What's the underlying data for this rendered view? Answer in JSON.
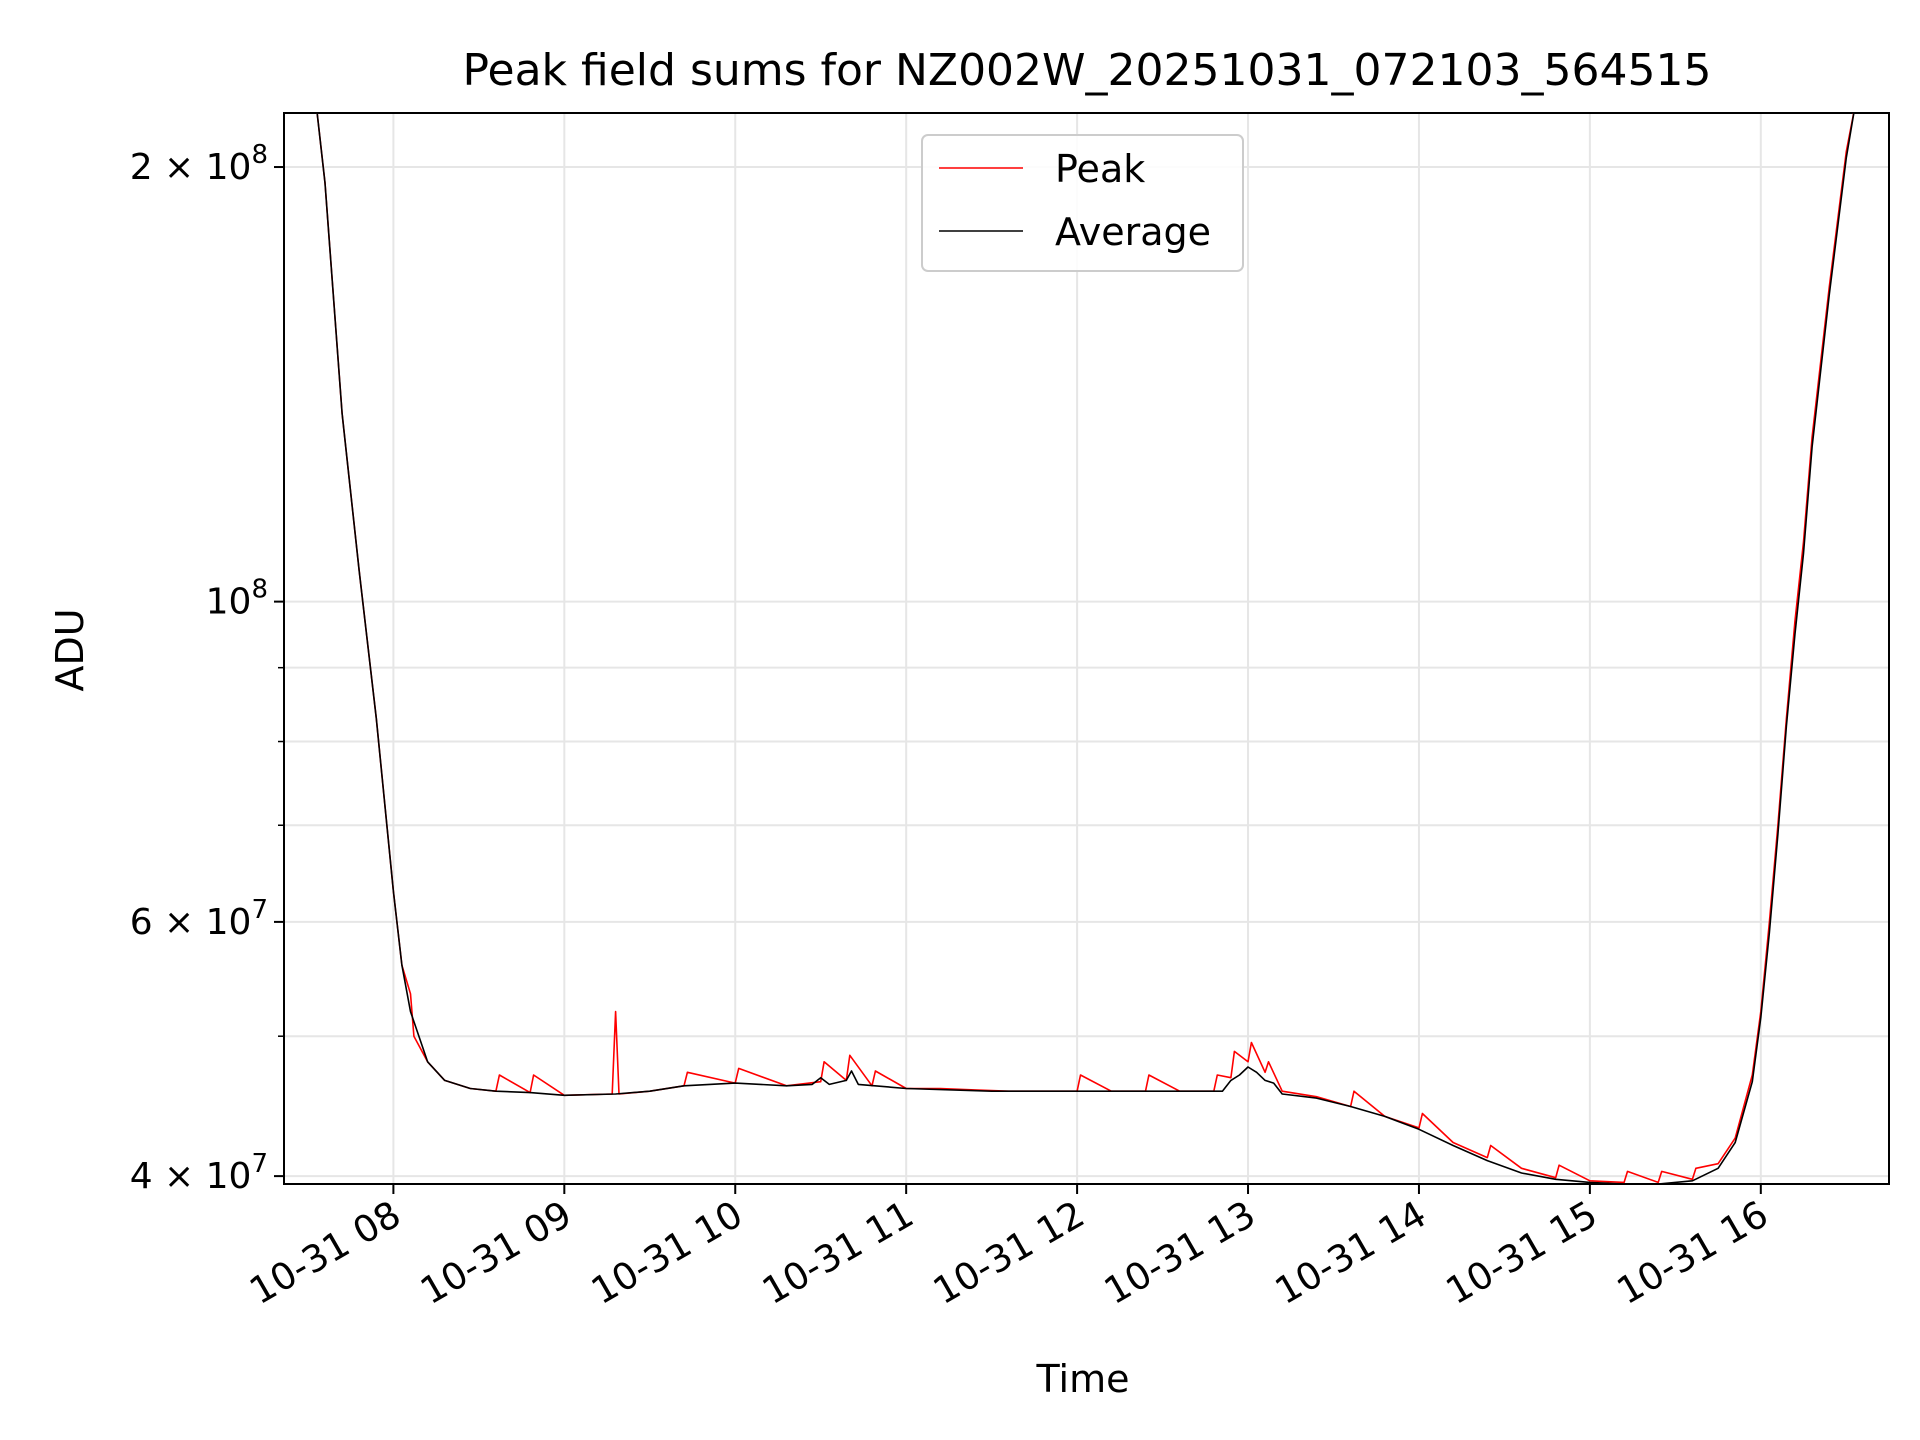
{
  "chart_data": {
    "type": "line",
    "title": "Peak field sums for NZ002W_20251031_072103_564515",
    "xlabel": "Time",
    "ylabel": "ADU",
    "yscale": "log",
    "grid": true,
    "legend_position": "top-center",
    "xlim_hours": [
      7.36,
      16.75
    ],
    "ylim": [
      39500000,
      218000000
    ],
    "x_ticks": [
      {
        "hour": 8,
        "label": "10-31 08"
      },
      {
        "hour": 9,
        "label": "10-31 09"
      },
      {
        "hour": 10,
        "label": "10-31 10"
      },
      {
        "hour": 11,
        "label": "10-31 11"
      },
      {
        "hour": 12,
        "label": "10-31 12"
      },
      {
        "hour": 13,
        "label": "10-31 13"
      },
      {
        "hour": 14,
        "label": "10-31 14"
      },
      {
        "hour": 15,
        "label": "10-31 15"
      },
      {
        "hour": 16,
        "label": "10-31 16"
      }
    ],
    "y_major_ticks": [
      {
        "value": 40000000,
        "mantissa": "4",
        "exp": "7"
      },
      {
        "value": 60000000,
        "mantissa": "6",
        "exp": "7"
      },
      {
        "value": 100000000,
        "mantissa": "",
        "exp": "8"
      },
      {
        "value": 200000000,
        "mantissa": "2",
        "exp": "8"
      }
    ],
    "y_minor_ticks": [
      50000000,
      70000000,
      80000000,
      90000000
    ],
    "series": [
      {
        "name": "Peak",
        "color": "#ff0000",
        "points": [
          [
            7.36,
            220000000.0
          ],
          [
            7.55,
            220000000.0
          ],
          [
            7.6,
            195000000.0
          ],
          [
            7.7,
            135000000.0
          ],
          [
            7.8,
            105000000.0
          ],
          [
            7.9,
            83000000.0
          ],
          [
            8.0,
            63000000.0
          ],
          [
            8.05,
            56000000.0
          ],
          [
            8.1,
            53500000.0
          ],
          [
            8.12,
            50000000.0
          ],
          [
            8.2,
            48000000.0
          ],
          [
            8.3,
            46600000.0
          ],
          [
            8.45,
            46000000.0
          ],
          [
            8.6,
            45800000.0
          ],
          [
            8.62,
            47000000.0
          ],
          [
            8.8,
            45700000.0
          ],
          [
            8.82,
            47000000.0
          ],
          [
            9.0,
            45500000.0
          ],
          [
            9.28,
            45600000.0
          ],
          [
            9.3,
            52000000.0
          ],
          [
            9.32,
            45600000.0
          ],
          [
            9.5,
            45800000.0
          ],
          [
            9.7,
            46200000.0
          ],
          [
            9.72,
            47200000.0
          ],
          [
            10.0,
            46400000.0
          ],
          [
            10.02,
            47500000.0
          ],
          [
            10.3,
            46200000.0
          ],
          [
            10.5,
            46500000.0
          ],
          [
            10.52,
            48000000.0
          ],
          [
            10.65,
            46600000.0
          ],
          [
            10.67,
            48500000.0
          ],
          [
            10.8,
            46200000.0
          ],
          [
            10.82,
            47300000.0
          ],
          [
            11.0,
            46000000.0
          ],
          [
            11.2,
            46000000.0
          ],
          [
            11.4,
            45900000.0
          ],
          [
            11.6,
            45800000.0
          ],
          [
            11.8,
            45800000.0
          ],
          [
            12.0,
            45800000.0
          ],
          [
            12.02,
            47000000.0
          ],
          [
            12.2,
            45800000.0
          ],
          [
            12.4,
            45800000.0
          ],
          [
            12.42,
            47000000.0
          ],
          [
            12.6,
            45800000.0
          ],
          [
            12.8,
            45800000.0
          ],
          [
            12.82,
            47000000.0
          ],
          [
            12.9,
            46800000.0
          ],
          [
            12.92,
            48800000.0
          ],
          [
            13.0,
            48000000.0
          ],
          [
            13.02,
            49500000.0
          ],
          [
            13.1,
            47200000.0
          ],
          [
            13.12,
            48000000.0
          ],
          [
            13.2,
            45800000.0
          ],
          [
            13.4,
            45400000.0
          ],
          [
            13.6,
            44700000.0
          ],
          [
            13.62,
            45800000.0
          ],
          [
            13.8,
            44000000.0
          ],
          [
            14.0,
            43200000.0
          ],
          [
            14.02,
            44200000.0
          ],
          [
            14.2,
            42200000.0
          ],
          [
            14.4,
            41200000.0
          ],
          [
            14.42,
            42000000.0
          ],
          [
            14.6,
            40500000.0
          ],
          [
            14.8,
            39900000.0
          ],
          [
            14.82,
            40700000.0
          ],
          [
            15.0,
            39700000.0
          ],
          [
            15.2,
            39600000.0
          ],
          [
            15.22,
            40300000.0
          ],
          [
            15.4,
            39600000.0
          ],
          [
            15.42,
            40300000.0
          ],
          [
            15.6,
            39800000.0
          ],
          [
            15.62,
            40500000.0
          ],
          [
            15.75,
            40800000.0
          ],
          [
            15.85,
            42500000.0
          ],
          [
            15.95,
            47000000.0
          ],
          [
            16.0,
            52000000.0
          ],
          [
            16.05,
            60000000.0
          ],
          [
            16.1,
            70000000.0
          ],
          [
            16.15,
            83000000.0
          ],
          [
            16.2,
            97000000.0
          ],
          [
            16.25,
            110000000.0
          ],
          [
            16.3,
            130000000.0
          ],
          [
            16.4,
            165000000.0
          ],
          [
            16.5,
            205000000.0
          ],
          [
            16.55,
            220000000.0
          ],
          [
            16.75,
            220000000.0
          ]
        ]
      },
      {
        "name": "Average",
        "color": "#000000",
        "points": [
          [
            7.36,
            220000000.0
          ],
          [
            7.55,
            220000000.0
          ],
          [
            7.6,
            195000000.0
          ],
          [
            7.7,
            135000000.0
          ],
          [
            7.8,
            105000000.0
          ],
          [
            7.9,
            83000000.0
          ],
          [
            8.0,
            63000000.0
          ],
          [
            8.05,
            56000000.0
          ],
          [
            8.1,
            52000000.0
          ],
          [
            8.2,
            48000000.0
          ],
          [
            8.3,
            46600000.0
          ],
          [
            8.45,
            46000000.0
          ],
          [
            8.6,
            45800000.0
          ],
          [
            8.8,
            45700000.0
          ],
          [
            9.0,
            45500000.0
          ],
          [
            9.3,
            45600000.0
          ],
          [
            9.5,
            45800000.0
          ],
          [
            9.7,
            46200000.0
          ],
          [
            10.0,
            46400000.0
          ],
          [
            10.3,
            46200000.0
          ],
          [
            10.45,
            46300000.0
          ],
          [
            10.5,
            46800000.0
          ],
          [
            10.55,
            46300000.0
          ],
          [
            10.65,
            46600000.0
          ],
          [
            10.68,
            47300000.0
          ],
          [
            10.72,
            46300000.0
          ],
          [
            11.0,
            46000000.0
          ],
          [
            11.5,
            45800000.0
          ],
          [
            12.0,
            45800000.0
          ],
          [
            12.5,
            45800000.0
          ],
          [
            12.85,
            45800000.0
          ],
          [
            12.9,
            46600000.0
          ],
          [
            12.95,
            47000000.0
          ],
          [
            13.0,
            47600000.0
          ],
          [
            13.05,
            47200000.0
          ],
          [
            13.1,
            46600000.0
          ],
          [
            13.15,
            46400000.0
          ],
          [
            13.2,
            45600000.0
          ],
          [
            13.4,
            45300000.0
          ],
          [
            13.6,
            44700000.0
          ],
          [
            13.8,
            44000000.0
          ],
          [
            14.0,
            43100000.0
          ],
          [
            14.2,
            42000000.0
          ],
          [
            14.4,
            41000000.0
          ],
          [
            14.6,
            40200000.0
          ],
          [
            14.8,
            39800000.0
          ],
          [
            15.0,
            39600000.0
          ],
          [
            15.2,
            39500000.0
          ],
          [
            15.4,
            39500000.0
          ],
          [
            15.6,
            39700000.0
          ],
          [
            15.75,
            40500000.0
          ],
          [
            15.85,
            42200000.0
          ],
          [
            15.95,
            46500000.0
          ],
          [
            16.0,
            51500000.0
          ],
          [
            16.05,
            59000000.0
          ],
          [
            16.1,
            69000000.0
          ],
          [
            16.15,
            82000000.0
          ],
          [
            16.2,
            95000000.0
          ],
          [
            16.25,
            108000000.0
          ],
          [
            16.3,
            128000000.0
          ],
          [
            16.4,
            163000000.0
          ],
          [
            16.5,
            203000000.0
          ],
          [
            16.55,
            220000000.0
          ],
          [
            16.75,
            220000000.0
          ]
        ]
      }
    ]
  }
}
